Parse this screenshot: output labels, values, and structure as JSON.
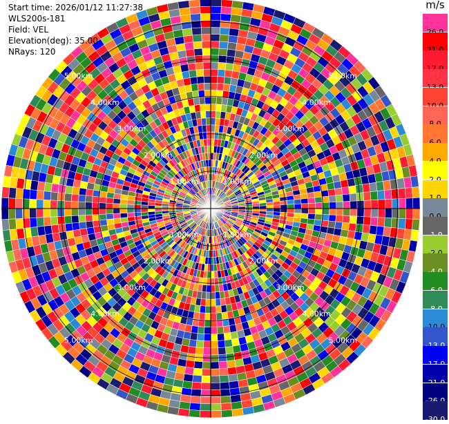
{
  "info": {
    "start_time": "Start time: 2026/01/12 11:27:38",
    "instrument": "WLS200s-181",
    "field": "Field: VEL",
    "elevation": "Elevation(deg): 35.00",
    "nrays": "NRays: 120"
  },
  "chart_data": {
    "type": "heatmap",
    "projection": "polar-ppi",
    "field": "VEL",
    "unit": "m/s",
    "n_rays": 120,
    "range_rings_km": [
      1.0,
      2.0,
      3.0,
      4.0,
      5.0
    ],
    "ring_labels": [
      "1.00km",
      "2.00km",
      "3.00km",
      "4.00km",
      "5.00km"
    ],
    "max_range_km": 5.6,
    "colorbar": {
      "ticks": [
        "26.0",
        "21.0",
        "17.0",
        "13.0",
        "10.0",
        "8.0",
        "6.0",
        "4.0",
        "2.0",
        "1.0",
        "0.0",
        "-1.0",
        "-2.0",
        "-4.0",
        "-6.0",
        "-8.0",
        "-10.0",
        "-13.0",
        "-17.0",
        "-21.0",
        "-26.0",
        "-30.0"
      ],
      "colors": [
        "#ff3399",
        "#ff0000",
        "#ff1a33",
        "#ff3344",
        "#ff4433",
        "#ff6655",
        "#ff7733",
        "#ffaa00",
        "#ffff00",
        "#ffd700",
        "#778899",
        "#666666",
        "#9acd32",
        "#6b8e23",
        "#228b22",
        "#2e8b57",
        "#2a8ad4",
        "#3355cc",
        "#0000ff",
        "#0000aa",
        "#000080",
        "#191970"
      ]
    }
  }
}
